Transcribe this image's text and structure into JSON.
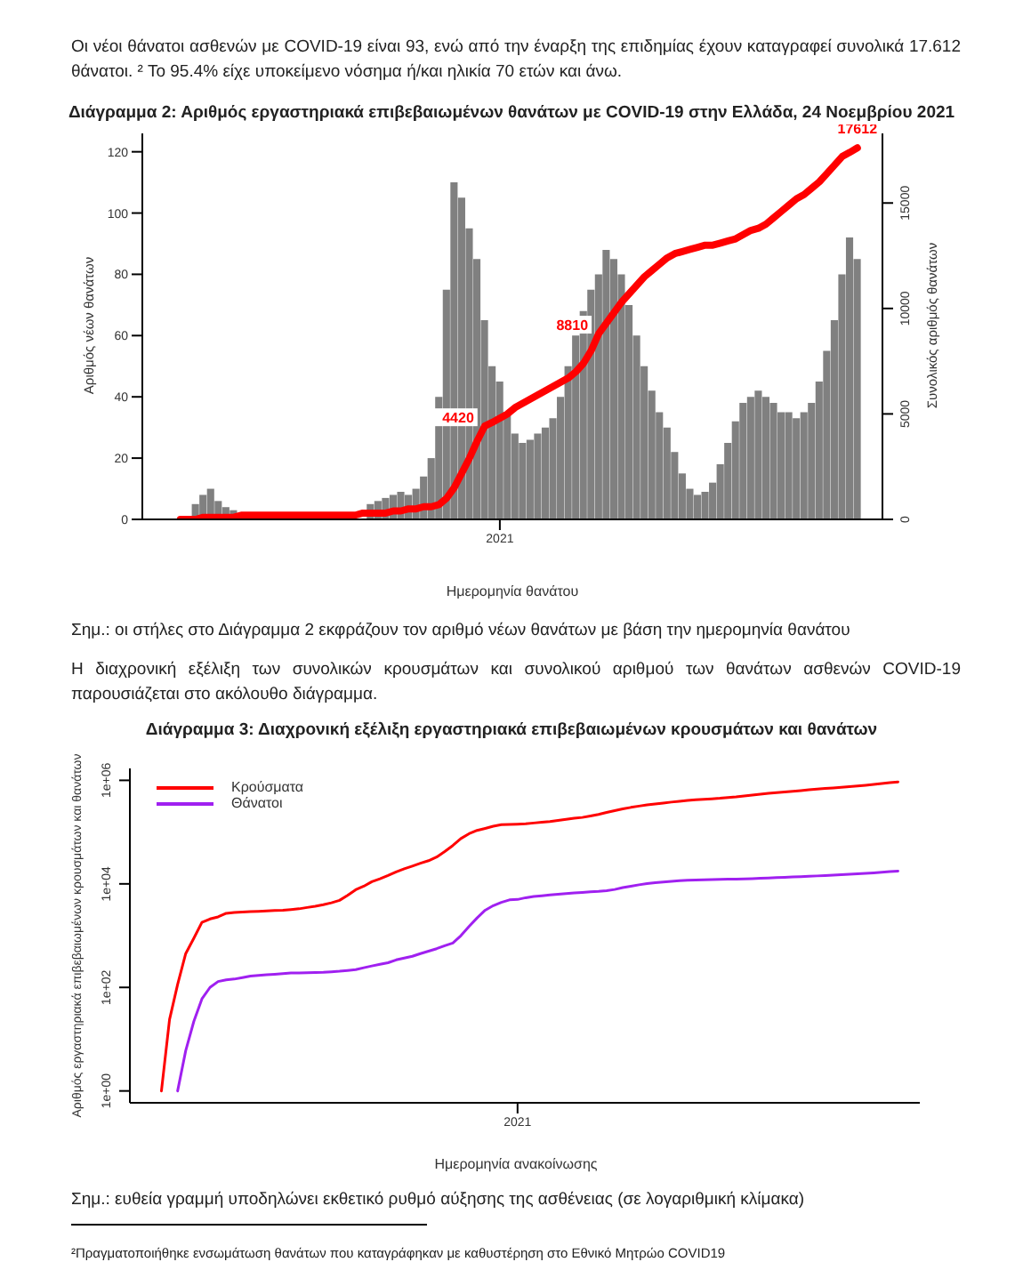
{
  "chart_data": [
    {
      "type": "bar",
      "title": "Διάγραμμα 2: Αριθμός εργαστηριακά επιβεβαιωμένων θανάτων με COVID-19 στην Ελλάδα, 24 Νοεμβρίου 2021",
      "xlabel": "Ημερομηνία θανάτου",
      "ylabel": "Αριθμός νέων θανάτων",
      "y2label": "Συνολικός αριθμός θανάτων",
      "ylim": [
        0,
        126
      ],
      "yticks": [
        0,
        20,
        40,
        60,
        80,
        100,
        120
      ],
      "y2lim": [
        0,
        18300
      ],
      "y2ticks": [
        0,
        5000,
        10000,
        15000
      ],
      "grid": false,
      "legend": false,
      "marker": "none",
      "annotations": [
        "Οι νέοι θάνατοι ασθενών με COVID-19 είναι 93, ενώ από την έναρξη της επιδημίας έχουν καταγραφεί συνολικά 17.612 θάνατοι. ² Το 95.4% είχε υποκείμενο νόσημα ή/και ηλικία 70 ετών και άνω.",
        "Σημ.: οι στήλες στο Διάγραμμα 2 εκφράζουν τον αριθμό νέων θανάτων με βάση την ημερομηνία θανάτου",
        "Η διαχρονική εξέλιξη των συνολικών κρουσμάτων και συνολικού αριθμού των θανάτων ασθενών COVID-19 παρουσιάζεται στο ακόλουθο διάγραμμα."
      ],
      "categories": [
        null,
        null,
        null,
        null,
        null,
        null,
        null,
        null,
        null,
        null,
        null,
        null,
        null,
        null,
        null,
        null,
        null,
        null,
        null,
        null,
        null,
        null,
        null,
        null,
        null,
        null,
        null,
        null,
        null,
        null,
        null,
        null,
        null,
        null,
        null,
        null,
        null,
        null,
        null,
        null,
        null,
        null,
        "2021",
        null,
        null,
        null,
        null,
        null,
        null,
        null,
        null,
        null,
        null,
        null,
        null,
        null,
        null,
        null,
        null,
        null,
        null,
        null,
        null,
        null,
        null,
        null,
        null,
        null,
        null,
        null,
        null,
        null,
        null,
        null,
        null,
        null,
        null,
        null,
        null,
        null,
        null,
        null,
        null,
        null,
        null,
        null,
        null,
        null,
        null,
        null
      ],
      "series": [
        {
          "color": "#808080",
          "values": [
            null,
            null,
            5,
            8,
            10,
            6,
            4,
            3,
            null,
            null,
            null,
            null,
            null,
            null,
            null,
            null,
            null,
            null,
            null,
            null,
            null,
            null,
            null,
            null,
            null,
            5,
            6,
            7,
            8,
            9,
            8,
            10,
            14,
            20,
            40,
            75,
            110,
            105,
            95,
            85,
            65,
            50,
            45,
            35,
            28,
            25,
            26,
            28,
            30,
            33,
            40,
            50,
            60,
            68,
            75,
            80,
            88,
            85,
            80,
            70,
            60,
            50,
            42,
            35,
            30,
            22,
            15,
            10,
            8,
            9,
            12,
            18,
            25,
            32,
            38,
            40,
            42,
            40,
            38,
            35,
            35,
            33,
            35,
            38,
            45,
            55,
            65,
            80,
            92,
            85
          ]
        },
        {
          "type": "line",
          "axis": "y2",
          "color": "#ff0000",
          "values": [
            0,
            0,
            0,
            100,
            100,
            100,
            100,
            100,
            200,
            200,
            200,
            200,
            200,
            200,
            200,
            200,
            200,
            200,
            200,
            200,
            200,
            200,
            200,
            200,
            300,
            300,
            300,
            300,
            400,
            400,
            500,
            500,
            600,
            600,
            700,
            1000,
            1500,
            2200,
            2900,
            3700,
            4420,
            4600,
            4800,
            5000,
            5300,
            5500,
            5700,
            5900,
            6100,
            6300,
            6500,
            6700,
            7000,
            7400,
            8000,
            8810,
            9300,
            9800,
            10300,
            10700,
            11100,
            11500,
            11800,
            12100,
            12400,
            12600,
            12700,
            12800,
            12900,
            13000,
            13000,
            13100,
            13200,
            13300,
            13500,
            13700,
            13800,
            14000,
            14300,
            14600,
            14900,
            15200,
            15400,
            15700,
            16000,
            16400,
            16800,
            17200,
            17400,
            17612
          ],
          "value_labels": [
            null,
            null,
            null,
            null,
            null,
            null,
            null,
            null,
            null,
            null,
            null,
            null,
            null,
            null,
            null,
            null,
            null,
            null,
            null,
            null,
            null,
            null,
            null,
            null,
            null,
            null,
            null,
            null,
            null,
            null,
            null,
            null,
            null,
            null,
            null,
            null,
            null,
            null,
            null,
            null,
            "4420",
            null,
            null,
            null,
            null,
            null,
            null,
            null,
            null,
            null,
            null,
            null,
            null,
            null,
            null,
            "8810",
            null,
            null,
            null,
            null,
            null,
            null,
            null,
            null,
            null,
            null,
            null,
            null,
            null,
            null,
            null,
            null,
            null,
            null,
            null,
            null,
            null,
            null,
            null,
            null,
            null,
            null,
            null,
            null,
            null,
            null,
            null,
            null,
            null,
            "17612"
          ]
        }
      ]
    },
    {
      "type": "line",
      "title": "Διάγραμμα 3: Διαχρονική εξέλιξη εργαστηριακά επιβεβαιωμένων κρουσμάτων και θανάτων",
      "xlabel": "Ημερομηνία ανακοίνωσης",
      "ylabel": "Αριθμός εργαστηριακά επιβεβαιωμένων κρουσμάτων και θανάτων",
      "ylim": [
        0.59,
        1700000
      ],
      "yticks": [
        {
          "value": 1,
          "label": "1e+00"
        },
        {
          "value": 100,
          "label": "1e+02"
        },
        {
          "value": 10000,
          "label": "1e+04"
        },
        {
          "value": 1000000,
          "label": "1e+06"
        }
      ],
      "log": "y",
      "grid": false,
      "legend": "top left",
      "marker": "none",
      "annotations": [
        "Σημ.: ευθεία γραμμή υποδηλώνει εκθετικό ρυθμό αύξησης της ασθένειας (σε λογαριθμική κλίμακα)",
        "²Πραγματοποιήθηκε ενσωμάτωση θανάτων που καταγράφηκαν με καθυστέρηση στο Εθνικό Μητρώο COVID19"
      ],
      "categories": [
        null,
        null,
        null,
        null,
        null,
        null,
        null,
        null,
        null,
        null,
        null,
        null,
        null,
        null,
        null,
        null,
        null,
        null,
        null,
        null,
        null,
        null,
        null,
        null,
        null,
        null,
        null,
        null,
        null,
        null,
        null,
        null,
        null,
        null,
        null,
        null,
        null,
        null,
        null,
        null,
        null,
        null,
        null,
        null,
        "2021",
        null,
        null,
        null,
        null,
        null,
        null,
        null,
        null,
        null,
        null,
        null,
        null,
        null,
        null,
        null,
        null,
        null,
        null,
        null,
        null,
        null,
        null,
        null,
        null,
        null,
        null,
        null,
        null,
        null,
        null,
        null,
        null,
        null,
        null,
        null,
        null,
        null,
        null,
        null,
        null,
        null,
        null,
        null,
        null,
        null,
        null,
        null
      ],
      "series": [
        {
          "name": "Κρούσματα",
          "color": "#ff0000",
          "values": [
            1,
            24,
            114,
            450,
            890,
            1800,
            2100,
            2300,
            2700,
            2800,
            2850,
            2900,
            2950,
            3000,
            3050,
            3100,
            3200,
            3300,
            3500,
            3700,
            3950,
            4300,
            4800,
            6000,
            7700,
            9000,
            11000,
            12500,
            14500,
            17000,
            19500,
            22000,
            25000,
            28000,
            33000,
            42000,
            55000,
            75000,
            93000,
            108000,
            118000,
            130000,
            139000,
            140000,
            142000,
            145000,
            150000,
            155000,
            160000,
            168000,
            177000,
            185000,
            192000,
            205000,
            220000,
            240000,
            260000,
            280000,
            300000,
            318000,
            335000,
            350000,
            365000,
            380000,
            395000,
            408000,
            420000,
            430000,
            440000,
            450000,
            465000,
            480000,
            500000,
            520000,
            540000,
            560000,
            580000,
            595000,
            615000,
            635000,
            655000,
            675000,
            695000,
            715000,
            735000,
            755000,
            780000,
            805000,
            835000,
            865000,
            900000,
            930000
          ]
        },
        {
          "name": "Θάνατοι",
          "color": "#a020f0",
          "values": [
            null,
            null,
            1,
            6,
            22,
            60,
            100,
            130,
            140,
            145,
            155,
            165,
            170,
            175,
            180,
            185,
            190,
            190,
            192,
            193,
            195,
            200,
            205,
            212,
            220,
            240,
            260,
            280,
            300,
            340,
            370,
            400,
            450,
            500,
            560,
            640,
            720,
            1000,
            1500,
            2200,
            3100,
            3800,
            4400,
            4900,
            5000,
            5400,
            5700,
            5900,
            6100,
            6300,
            6500,
            6700,
            6850,
            7000,
            7150,
            7400,
            7800,
            8500,
            9000,
            9600,
            10100,
            10500,
            10900,
            11200,
            11500,
            11700,
            11900,
            12000,
            12100,
            12200,
            12300,
            12400,
            12500,
            12600,
            12800,
            13000,
            13200,
            13400,
            13600,
            13800,
            14000,
            14250,
            14500,
            14750,
            15000,
            15300,
            15600,
            15950,
            16350,
            16800,
            17200,
            17600
          ]
        }
      ]
    }
  ]
}
